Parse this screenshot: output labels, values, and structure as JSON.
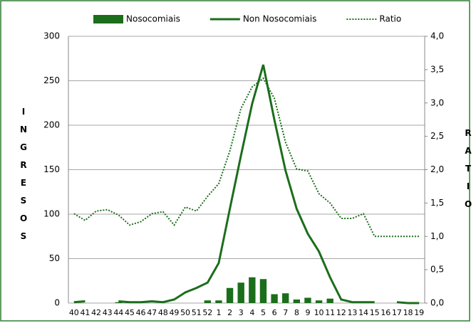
{
  "chart_data": {
    "type": "bar",
    "categories": [
      "40",
      "41",
      "42",
      "43",
      "44",
      "45",
      "46",
      "47",
      "48",
      "49",
      "50",
      "51",
      "52",
      "1",
      "2",
      "3",
      "4",
      "5",
      "6",
      "7",
      "8",
      "9",
      "10",
      "11",
      "12",
      "13",
      "14",
      "15",
      "16",
      "17",
      "18",
      "19"
    ],
    "y_label": "INGRESOS",
    "y2_label": "RATIO",
    "ylim": [
      0,
      300
    ],
    "yticks": [
      0,
      50,
      100,
      150,
      200,
      250,
      300
    ],
    "y2lim": [
      0,
      4
    ],
    "y2ticks": [
      {
        "value": 0,
        "label": "0,0"
      },
      {
        "value": 0.5,
        "label": "0,5"
      },
      {
        "value": 1,
        "label": "1,0"
      },
      {
        "value": 1.5,
        "label": "1,5"
      },
      {
        "value": 2,
        "label": "2,0"
      },
      {
        "value": 2.5,
        "label": "2,5"
      },
      {
        "value": 3,
        "label": "3,0"
      },
      {
        "value": 3.5,
        "label": "3,5"
      },
      {
        "value": 4,
        "label": "4,0"
      }
    ],
    "grid": true,
    "series": [
      {
        "name": "Nosocomiais",
        "type": "bar",
        "color": "#1b6e1b",
        "values": [
          0,
          0,
          0,
          0,
          1,
          1,
          1,
          0,
          0,
          0,
          0,
          0,
          3,
          3,
          17,
          23,
          29,
          27,
          10,
          11,
          4,
          6,
          3,
          5,
          0,
          0,
          0,
          0,
          0,
          0,
          0,
          0
        ]
      },
      {
        "name": "Non Nosocomiais",
        "type": "line",
        "color": "#1b6e1b",
        "values": [
          1,
          2,
          null,
          null,
          2,
          1,
          1,
          2,
          1,
          4,
          12,
          17,
          23,
          45,
          106,
          166,
          224,
          268,
          206,
          149,
          106,
          78,
          58,
          29,
          4,
          1,
          1,
          1,
          null,
          1,
          0,
          0
        ]
      },
      {
        "name": "Ratio",
        "type": "line",
        "dotted": true,
        "axis": "y2",
        "color": "#1b6e1b",
        "values": [
          1.34,
          1.24,
          1.38,
          1.4,
          1.32,
          1.17,
          1.22,
          1.34,
          1.37,
          1.17,
          1.44,
          1.38,
          1.6,
          1.79,
          2.28,
          2.92,
          3.24,
          3.37,
          3.07,
          2.41,
          2.01,
          1.98,
          1.64,
          1.5,
          1.27,
          1.27,
          1.34,
          1.0,
          1.0,
          1.0,
          1.0,
          1.0
        ]
      }
    ]
  }
}
